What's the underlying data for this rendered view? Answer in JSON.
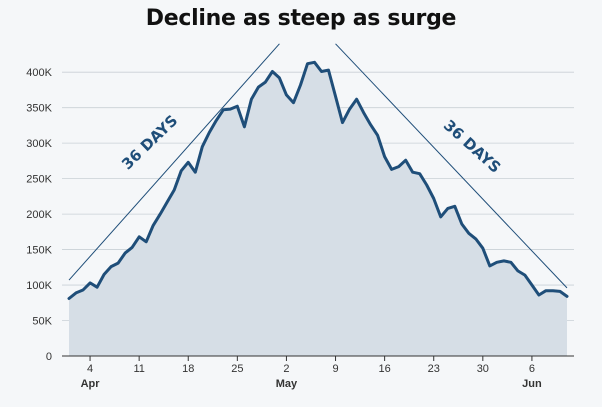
{
  "title": "Decline as steep as surge",
  "chart_data": {
    "type": "area",
    "title": "Decline as steep as surge",
    "xlabel": "",
    "ylabel": "",
    "ylim": [
      0,
      420000
    ],
    "y_ticks": [
      0,
      50000,
      100000,
      150000,
      200000,
      250000,
      300000,
      350000,
      400000
    ],
    "y_tick_labels": [
      "0",
      "50K",
      "100K",
      "150K",
      "200K",
      "250K",
      "300K",
      "350K",
      "400K"
    ],
    "x_ticks": [
      {
        "day": 4,
        "label": "4",
        "month": "Apr"
      },
      {
        "day": 11,
        "label": "11",
        "month": ""
      },
      {
        "day": 18,
        "label": "18",
        "month": ""
      },
      {
        "day": 25,
        "label": "25",
        "month": ""
      },
      {
        "day": 32,
        "label": "2",
        "month": "May"
      },
      {
        "day": 39,
        "label": "9",
        "month": ""
      },
      {
        "day": 46,
        "label": "16",
        "month": ""
      },
      {
        "day": 53,
        "label": "23",
        "month": ""
      },
      {
        "day": 60,
        "label": "30",
        "month": ""
      },
      {
        "day": 67,
        "label": "6",
        "month": "Jun"
      }
    ],
    "x_start": "2021-04-01",
    "grid": true,
    "series": [
      {
        "color": "#1f4e79",
        "fill": "#d6dee6",
        "points": [
          [
            1,
            81000
          ],
          [
            2,
            89000
          ],
          [
            3,
            93000
          ],
          [
            4,
            103000
          ],
          [
            5,
            97000
          ],
          [
            6,
            115000
          ],
          [
            7,
            126000
          ],
          [
            8,
            131000
          ],
          [
            9,
            145000
          ],
          [
            10,
            153000
          ],
          [
            11,
            168000
          ],
          [
            12,
            161000
          ],
          [
            13,
            184000
          ],
          [
            14,
            200000
          ],
          [
            15,
            217000
          ],
          [
            16,
            234000
          ],
          [
            17,
            261000
          ],
          [
            18,
            273000
          ],
          [
            19,
            259000
          ],
          [
            20,
            295000
          ],
          [
            21,
            315000
          ],
          [
            22,
            332000
          ],
          [
            23,
            347000
          ],
          [
            24,
            348000
          ],
          [
            25,
            352000
          ],
          [
            26,
            323000
          ],
          [
            27,
            362000
          ],
          [
            28,
            379000
          ],
          [
            29,
            386000
          ],
          [
            30,
            401000
          ],
          [
            31,
            392000
          ],
          [
            32,
            368000
          ],
          [
            33,
            357000
          ],
          [
            34,
            382000
          ],
          [
            35,
            412000
          ],
          [
            36,
            414000
          ],
          [
            37,
            401000
          ],
          [
            38,
            403000
          ],
          [
            39,
            366000
          ],
          [
            40,
            329000
          ],
          [
            41,
            348000
          ],
          [
            42,
            362000
          ],
          [
            43,
            343000
          ],
          [
            44,
            326000
          ],
          [
            45,
            311000
          ],
          [
            46,
            281000
          ],
          [
            47,
            263000
          ],
          [
            48,
            267000
          ],
          [
            49,
            276000
          ],
          [
            50,
            259000
          ],
          [
            51,
            257000
          ],
          [
            52,
            241000
          ],
          [
            53,
            222000
          ],
          [
            54,
            196000
          ],
          [
            55,
            208000
          ],
          [
            56,
            211000
          ],
          [
            57,
            186000
          ],
          [
            58,
            173000
          ],
          [
            59,
            165000
          ],
          [
            60,
            152000
          ],
          [
            61,
            127000
          ],
          [
            62,
            132000
          ],
          [
            63,
            134000
          ],
          [
            64,
            132000
          ],
          [
            65,
            120000
          ],
          [
            66,
            114000
          ],
          [
            67,
            100000
          ],
          [
            68,
            86000
          ],
          [
            69,
            92000
          ],
          [
            70,
            92000
          ],
          [
            71,
            91000
          ],
          [
            72,
            84000
          ]
        ]
      }
    ],
    "annotations": [
      {
        "text": "36 DAYS",
        "from_day": 1,
        "from_value": 107000,
        "to_day": 31,
        "to_value": 440000,
        "label_day": 13,
        "label_value": 296000,
        "angle": -44
      },
      {
        "text": "36 DAYS",
        "from_day": 39,
        "from_value": 440000,
        "to_day": 72,
        "to_value": 96000,
        "label_day": 58,
        "label_value": 290000,
        "angle": 42
      }
    ]
  }
}
